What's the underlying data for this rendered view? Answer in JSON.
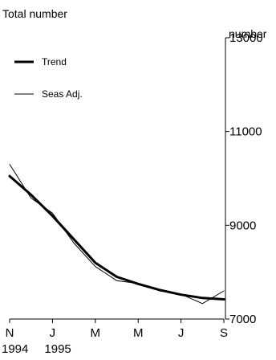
{
  "chart_data": {
    "type": "line",
    "title": "Total number",
    "ylabel": "number",
    "ylim": [
      7000,
      13000
    ],
    "yticks": [
      7000,
      9000,
      11000,
      13000
    ],
    "ytick_labels": [
      "7000",
      "9000",
      "11000",
      "13000"
    ],
    "xlim": [
      "1994-11",
      "1995-09"
    ],
    "xticks": [
      {
        "month": "1994-11",
        "label": "N",
        "year": "1994"
      },
      {
        "month": "1995-01",
        "label": "J",
        "year": "1995"
      },
      {
        "month": "1995-03",
        "label": "M",
        "year": ""
      },
      {
        "month": "1995-05",
        "label": "M",
        "year": ""
      },
      {
        "month": "1995-07",
        "label": "J",
        "year": ""
      },
      {
        "month": "1995-09",
        "label": "S",
        "year": ""
      }
    ],
    "legend_position": "top-left",
    "series": [
      {
        "name": "Trend",
        "style": "thick",
        "color": "#000000",
        "x": [
          "1994-11",
          "1994-12",
          "1995-01",
          "1995-02",
          "1995-03",
          "1995-04",
          "1995-05",
          "1995-06",
          "1995-07",
          "1995-08",
          "1995-09"
        ],
        "values": [
          10050,
          9650,
          9200,
          8700,
          8200,
          7900,
          7750,
          7620,
          7520,
          7450,
          7420
        ]
      },
      {
        "name": "Seas Adj.",
        "style": "thin",
        "color": "#000000",
        "x": [
          "1994-11",
          "1994-12",
          "1995-01",
          "1995-02",
          "1995-03",
          "1995-04",
          "1995-05",
          "1995-06",
          "1995-07",
          "1995-08",
          "1995-09"
        ],
        "values": [
          10300,
          9580,
          9260,
          8620,
          8120,
          7820,
          7760,
          7600,
          7530,
          7330,
          7600
        ]
      }
    ]
  }
}
